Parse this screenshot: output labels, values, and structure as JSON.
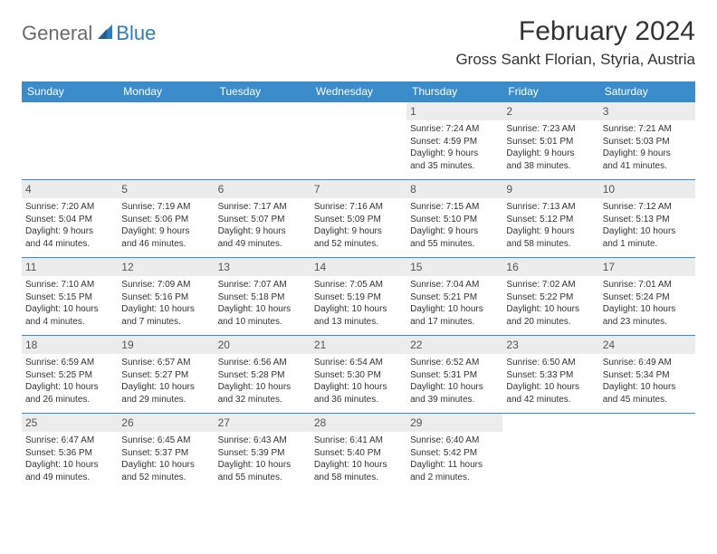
{
  "brand": {
    "general": "General",
    "blue": "Blue"
  },
  "title": "February 2024",
  "location": "Gross Sankt Florian, Styria, Austria",
  "colors": {
    "header_bg": "#3a8bc9",
    "header_text": "#ffffff",
    "daynum_bg": "#ececec",
    "week_border": "#3a8bc9",
    "logo_gray": "#6b6b6b",
    "logo_blue": "#2f7bbf"
  },
  "day_headers": [
    "Sunday",
    "Monday",
    "Tuesday",
    "Wednesday",
    "Thursday",
    "Friday",
    "Saturday"
  ],
  "weeks": [
    [
      null,
      null,
      null,
      null,
      {
        "n": "1",
        "sr": "Sunrise: 7:24 AM",
        "ss": "Sunset: 4:59 PM",
        "d1": "Daylight: 9 hours",
        "d2": "and 35 minutes."
      },
      {
        "n": "2",
        "sr": "Sunrise: 7:23 AM",
        "ss": "Sunset: 5:01 PM",
        "d1": "Daylight: 9 hours",
        "d2": "and 38 minutes."
      },
      {
        "n": "3",
        "sr": "Sunrise: 7:21 AM",
        "ss": "Sunset: 5:03 PM",
        "d1": "Daylight: 9 hours",
        "d2": "and 41 minutes."
      }
    ],
    [
      {
        "n": "4",
        "sr": "Sunrise: 7:20 AM",
        "ss": "Sunset: 5:04 PM",
        "d1": "Daylight: 9 hours",
        "d2": "and 44 minutes."
      },
      {
        "n": "5",
        "sr": "Sunrise: 7:19 AM",
        "ss": "Sunset: 5:06 PM",
        "d1": "Daylight: 9 hours",
        "d2": "and 46 minutes."
      },
      {
        "n": "6",
        "sr": "Sunrise: 7:17 AM",
        "ss": "Sunset: 5:07 PM",
        "d1": "Daylight: 9 hours",
        "d2": "and 49 minutes."
      },
      {
        "n": "7",
        "sr": "Sunrise: 7:16 AM",
        "ss": "Sunset: 5:09 PM",
        "d1": "Daylight: 9 hours",
        "d2": "and 52 minutes."
      },
      {
        "n": "8",
        "sr": "Sunrise: 7:15 AM",
        "ss": "Sunset: 5:10 PM",
        "d1": "Daylight: 9 hours",
        "d2": "and 55 minutes."
      },
      {
        "n": "9",
        "sr": "Sunrise: 7:13 AM",
        "ss": "Sunset: 5:12 PM",
        "d1": "Daylight: 9 hours",
        "d2": "and 58 minutes."
      },
      {
        "n": "10",
        "sr": "Sunrise: 7:12 AM",
        "ss": "Sunset: 5:13 PM",
        "d1": "Daylight: 10 hours",
        "d2": "and 1 minute."
      }
    ],
    [
      {
        "n": "11",
        "sr": "Sunrise: 7:10 AM",
        "ss": "Sunset: 5:15 PM",
        "d1": "Daylight: 10 hours",
        "d2": "and 4 minutes."
      },
      {
        "n": "12",
        "sr": "Sunrise: 7:09 AM",
        "ss": "Sunset: 5:16 PM",
        "d1": "Daylight: 10 hours",
        "d2": "and 7 minutes."
      },
      {
        "n": "13",
        "sr": "Sunrise: 7:07 AM",
        "ss": "Sunset: 5:18 PM",
        "d1": "Daylight: 10 hours",
        "d2": "and 10 minutes."
      },
      {
        "n": "14",
        "sr": "Sunrise: 7:05 AM",
        "ss": "Sunset: 5:19 PM",
        "d1": "Daylight: 10 hours",
        "d2": "and 13 minutes."
      },
      {
        "n": "15",
        "sr": "Sunrise: 7:04 AM",
        "ss": "Sunset: 5:21 PM",
        "d1": "Daylight: 10 hours",
        "d2": "and 17 minutes."
      },
      {
        "n": "16",
        "sr": "Sunrise: 7:02 AM",
        "ss": "Sunset: 5:22 PM",
        "d1": "Daylight: 10 hours",
        "d2": "and 20 minutes."
      },
      {
        "n": "17",
        "sr": "Sunrise: 7:01 AM",
        "ss": "Sunset: 5:24 PM",
        "d1": "Daylight: 10 hours",
        "d2": "and 23 minutes."
      }
    ],
    [
      {
        "n": "18",
        "sr": "Sunrise: 6:59 AM",
        "ss": "Sunset: 5:25 PM",
        "d1": "Daylight: 10 hours",
        "d2": "and 26 minutes."
      },
      {
        "n": "19",
        "sr": "Sunrise: 6:57 AM",
        "ss": "Sunset: 5:27 PM",
        "d1": "Daylight: 10 hours",
        "d2": "and 29 minutes."
      },
      {
        "n": "20",
        "sr": "Sunrise: 6:56 AM",
        "ss": "Sunset: 5:28 PM",
        "d1": "Daylight: 10 hours",
        "d2": "and 32 minutes."
      },
      {
        "n": "21",
        "sr": "Sunrise: 6:54 AM",
        "ss": "Sunset: 5:30 PM",
        "d1": "Daylight: 10 hours",
        "d2": "and 36 minutes."
      },
      {
        "n": "22",
        "sr": "Sunrise: 6:52 AM",
        "ss": "Sunset: 5:31 PM",
        "d1": "Daylight: 10 hours",
        "d2": "and 39 minutes."
      },
      {
        "n": "23",
        "sr": "Sunrise: 6:50 AM",
        "ss": "Sunset: 5:33 PM",
        "d1": "Daylight: 10 hours",
        "d2": "and 42 minutes."
      },
      {
        "n": "24",
        "sr": "Sunrise: 6:49 AM",
        "ss": "Sunset: 5:34 PM",
        "d1": "Daylight: 10 hours",
        "d2": "and 45 minutes."
      }
    ],
    [
      {
        "n": "25",
        "sr": "Sunrise: 6:47 AM",
        "ss": "Sunset: 5:36 PM",
        "d1": "Daylight: 10 hours",
        "d2": "and 49 minutes."
      },
      {
        "n": "26",
        "sr": "Sunrise: 6:45 AM",
        "ss": "Sunset: 5:37 PM",
        "d1": "Daylight: 10 hours",
        "d2": "and 52 minutes."
      },
      {
        "n": "27",
        "sr": "Sunrise: 6:43 AM",
        "ss": "Sunset: 5:39 PM",
        "d1": "Daylight: 10 hours",
        "d2": "and 55 minutes."
      },
      {
        "n": "28",
        "sr": "Sunrise: 6:41 AM",
        "ss": "Sunset: 5:40 PM",
        "d1": "Daylight: 10 hours",
        "d2": "and 58 minutes."
      },
      {
        "n": "29",
        "sr": "Sunrise: 6:40 AM",
        "ss": "Sunset: 5:42 PM",
        "d1": "Daylight: 11 hours",
        "d2": "and 2 minutes."
      },
      null,
      null
    ]
  ]
}
